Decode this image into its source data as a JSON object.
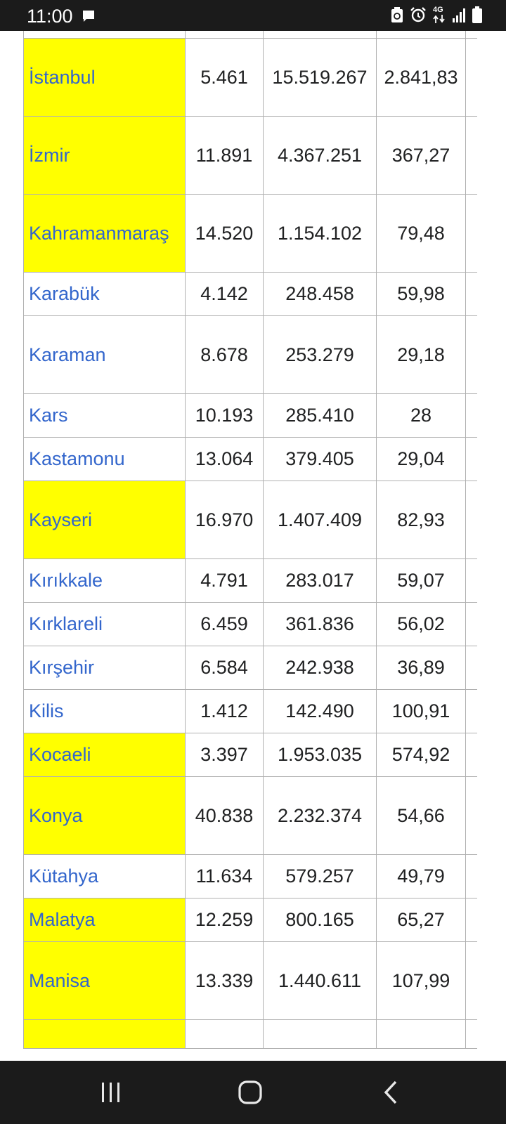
{
  "status_bar": {
    "time": "11:00",
    "network": "4G",
    "icons": [
      "message-icon",
      "recycle-icon",
      "alarm-icon",
      "data-arrows-icon",
      "signal-icon",
      "battery-icon"
    ]
  },
  "table": {
    "rows": [
      {
        "name": "İstanbul",
        "area": "5.461",
        "population": "15.519.267",
        "density": "2.841,83",
        "highlight": true
      },
      {
        "name": "İzmir",
        "area": "11.891",
        "population": "4.367.251",
        "density": "367,27",
        "highlight": true
      },
      {
        "name": "Kahramanmaraş",
        "area": "14.520",
        "population": "1.154.102",
        "density": "79,48",
        "highlight": true
      },
      {
        "name": "Karabük",
        "area": "4.142",
        "population": "248.458",
        "density": "59,98",
        "highlight": false
      },
      {
        "name": "Karaman",
        "area": "8.678",
        "population": "253.279",
        "density": "29,18",
        "highlight": false
      },
      {
        "name": "Kars",
        "area": "10.193",
        "population": "285.410",
        "density": "28",
        "highlight": false
      },
      {
        "name": "Kastamonu",
        "area": "13.064",
        "population": "379.405",
        "density": "29,04",
        "highlight": false
      },
      {
        "name": "Kayseri",
        "area": "16.970",
        "population": "1.407.409",
        "density": "82,93",
        "highlight": true
      },
      {
        "name": "Kırıkkale",
        "area": "4.791",
        "population": "283.017",
        "density": "59,07",
        "highlight": false
      },
      {
        "name": "Kırklareli",
        "area": "6.459",
        "population": "361.836",
        "density": "56,02",
        "highlight": false
      },
      {
        "name": "Kırşehir",
        "area": "6.584",
        "population": "242.938",
        "density": "36,89",
        "highlight": false
      },
      {
        "name": "Kilis",
        "area": "1.412",
        "population": "142.490",
        "density": "100,91",
        "highlight": false
      },
      {
        "name": "Kocaeli",
        "area": "3.397",
        "population": "1.953.035",
        "density": "574,92",
        "highlight": true
      },
      {
        "name": "Konya",
        "area": "40.838",
        "population": "2.232.374",
        "density": "54,66",
        "highlight": true
      },
      {
        "name": "Kütahya",
        "area": "11.634",
        "population": "579.257",
        "density": "49,79",
        "highlight": false
      },
      {
        "name": "Malatya",
        "area": "12.259",
        "population": "800.165",
        "density": "65,27",
        "highlight": true
      },
      {
        "name": "Manisa",
        "area": "13.339",
        "population": "1.440.611",
        "density": "107,99",
        "highlight": true
      }
    ]
  },
  "colors": {
    "highlight": "#ffff00",
    "link": "#3366cc",
    "system_bar": "#1b1b1b"
  },
  "nav_bar": {
    "buttons": [
      "recent-apps-icon",
      "home-icon",
      "back-icon"
    ]
  }
}
